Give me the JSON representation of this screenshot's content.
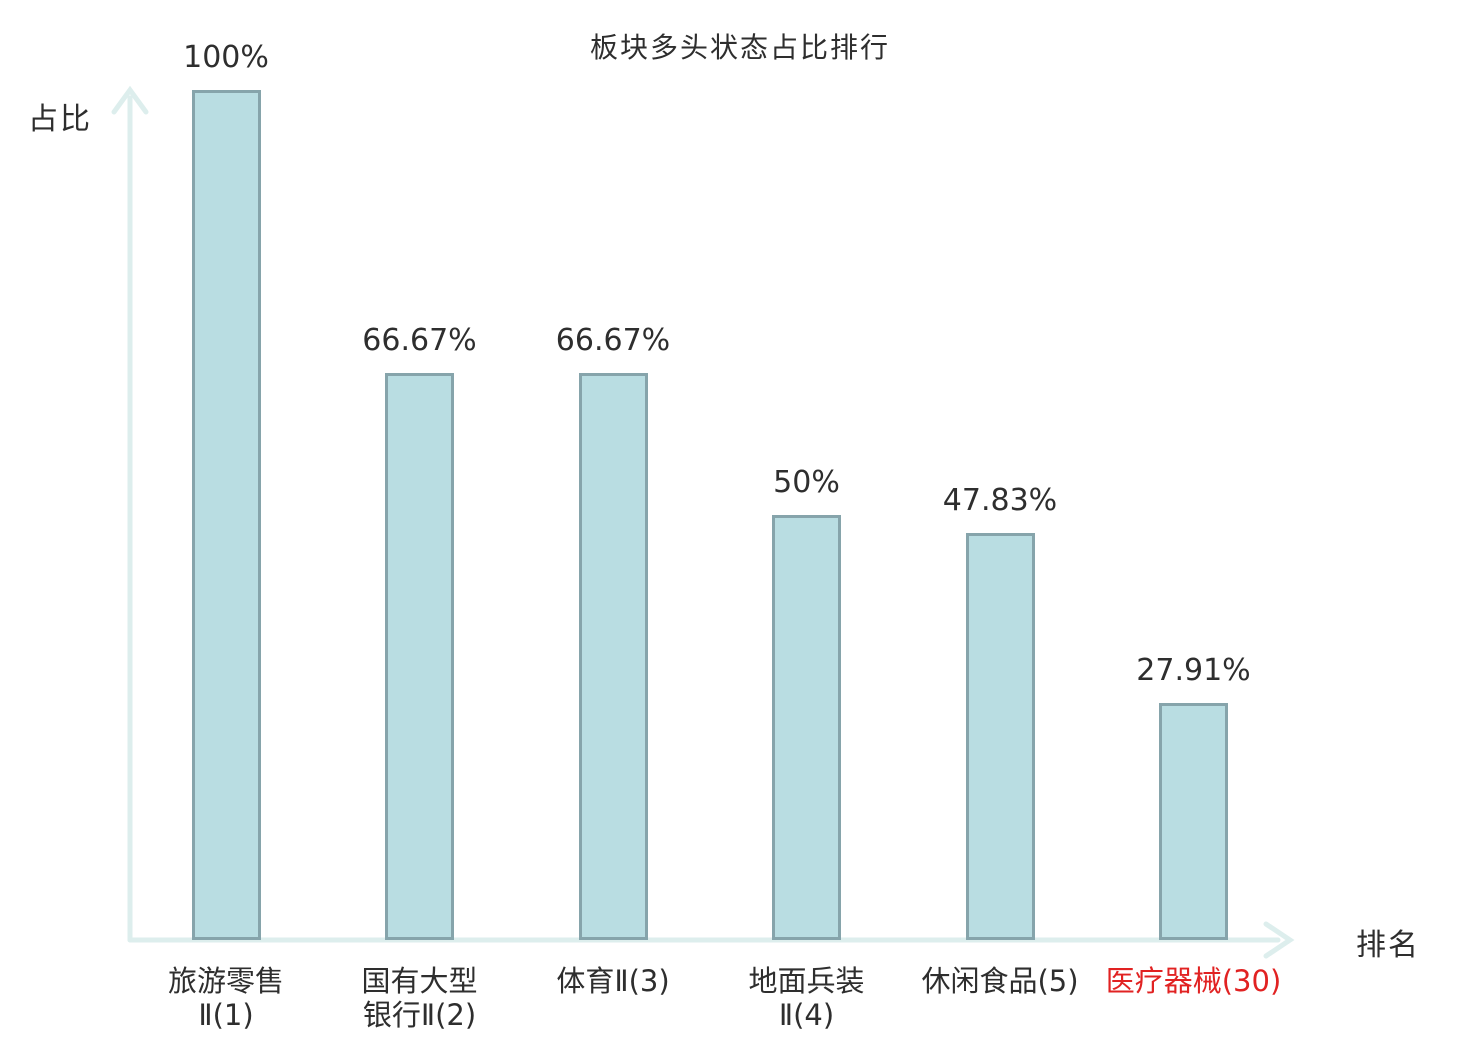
{
  "colors": {
    "background": "#ffffff",
    "bar_fill": "#b9dde2",
    "bar_border": "#86a4ab",
    "axis": "#ddeeed",
    "text": "#2e2e2e",
    "highlight_text": "#e12222"
  },
  "chart_data": {
    "type": "bar",
    "title": "板块多头状态占比排行",
    "xlabel": "排名",
    "ylabel": "占比",
    "ylim": [
      0,
      100
    ],
    "grid": false,
    "legend": null,
    "categories": [
      "旅游零售Ⅱ(1)",
      "国有大型银行Ⅱ(2)",
      "体育Ⅱ(3)",
      "地面兵装Ⅱ(4)",
      "休闲食品(5)",
      "医疗器械(30)"
    ],
    "category_label_lines": [
      [
        "旅游零售",
        "Ⅱ(1)"
      ],
      [
        "国有大型",
        "银行Ⅱ(2)"
      ],
      [
        "体育Ⅱ(3)"
      ],
      [
        "地面兵装",
        "Ⅱ(4)"
      ],
      [
        "休闲食品(5)"
      ],
      [
        "医疗器械(30)"
      ]
    ],
    "values": [
      100,
      66.67,
      66.67,
      50,
      47.83,
      27.91
    ],
    "value_labels": [
      "100%",
      "66.67%",
      "66.67%",
      "50%",
      "47.83%",
      "27.91%"
    ],
    "highlighted_category_index": 5
  }
}
